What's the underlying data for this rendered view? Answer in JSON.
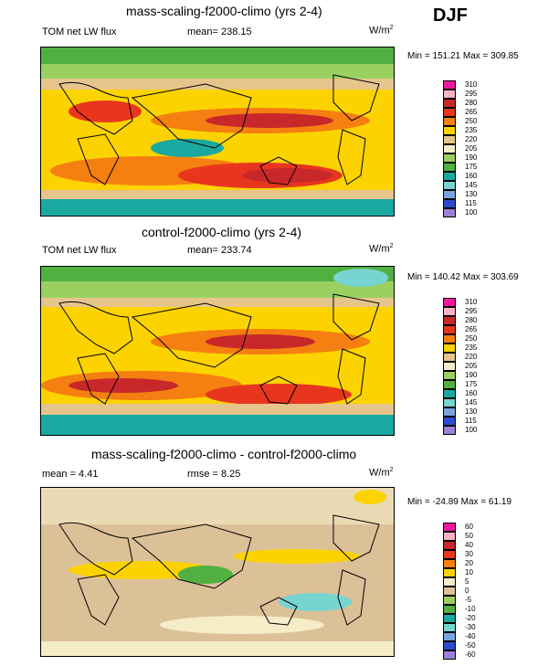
{
  "season": "DJF",
  "panels": [
    {
      "title": "mass-scaling-f2000-climo (yrs 2-4)",
      "left_label": "TOM net LW flux",
      "center_label": "mean= 238.15",
      "units": "W/m",
      "units_sup": "2",
      "minmax": "Min = 151.21 Max = 309.85",
      "levels": [
        "310",
        "295",
        "280",
        "265",
        "250",
        "235",
        "220",
        "205",
        "190",
        "175",
        "160",
        "145",
        "130",
        "115",
        "100"
      ]
    },
    {
      "title": "control-f2000-climo (yrs 2-4)",
      "left_label": "TOM net LW flux",
      "center_label": "mean= 233.74",
      "units": "W/m",
      "units_sup": "2",
      "minmax": "Min = 140.42 Max = 303.69",
      "levels": [
        "310",
        "295",
        "280",
        "265",
        "250",
        "235",
        "220",
        "205",
        "190",
        "175",
        "160",
        "145",
        "130",
        "115",
        "100"
      ]
    },
    {
      "title": "mass-scaling-f2000-climo - control-f2000-climo",
      "left_label": "mean =   4.41",
      "center_label": "rmse =   8.25",
      "units": "W/m",
      "units_sup": "2",
      "minmax": "Min = -24.89 Max =  61.19",
      "levels": [
        "60",
        "50",
        "40",
        "30",
        "20",
        "10",
        "5",
        "0",
        "-5",
        "-10",
        "-20",
        "-30",
        "-40",
        "-50",
        "-60"
      ]
    }
  ],
  "colors": {
    "abs_scale": [
      "#f0189c",
      "#f7b2c6",
      "#c8282a",
      "#e8361e",
      "#f57f10",
      "#fcd300",
      "#e6c58d",
      "#f5ecc8",
      "#9ad060",
      "#50b040",
      "#1aa8a0",
      "#78d4d0",
      "#7aa4e0",
      "#2c4bd0",
      "#9d80d8"
    ],
    "diff_scale": [
      "#f0189c",
      "#f7b2c6",
      "#c8282a",
      "#e8361e",
      "#f57f10",
      "#fcd300",
      "#f5ecc8",
      "#dcc098",
      "#9ad060",
      "#50b040",
      "#1aa8a0",
      "#78d4d0",
      "#7aa4e0",
      "#2c4bd0",
      "#9d80d8"
    ]
  },
  "chart_data": [
    {
      "type": "heatmap",
      "title": "mass-scaling-f2000-climo (yrs 2-4)",
      "variable": "TOM net LW flux",
      "units": "W/m2",
      "season": "DJF",
      "mean": 238.15,
      "min": 151.21,
      "max": 309.85,
      "contour_levels": [
        100,
        115,
        130,
        145,
        160,
        175,
        190,
        205,
        220,
        235,
        250,
        265,
        280,
        295,
        310
      ]
    },
    {
      "type": "heatmap",
      "title": "control-f2000-climo (yrs 2-4)",
      "variable": "TOM net LW flux",
      "units": "W/m2",
      "season": "DJF",
      "mean": 233.74,
      "min": 140.42,
      "max": 303.69,
      "contour_levels": [
        100,
        115,
        130,
        145,
        160,
        175,
        190,
        205,
        220,
        235,
        250,
        265,
        280,
        295,
        310
      ]
    },
    {
      "type": "heatmap",
      "title": "mass-scaling-f2000-climo - control-f2000-climo",
      "units": "W/m2",
      "season": "DJF",
      "mean": 4.41,
      "rmse": 8.25,
      "min": -24.89,
      "max": 61.19,
      "contour_levels": [
        -60,
        -50,
        -40,
        -30,
        -20,
        -10,
        -5,
        0,
        5,
        10,
        20,
        30,
        40,
        50,
        60
      ]
    }
  ]
}
